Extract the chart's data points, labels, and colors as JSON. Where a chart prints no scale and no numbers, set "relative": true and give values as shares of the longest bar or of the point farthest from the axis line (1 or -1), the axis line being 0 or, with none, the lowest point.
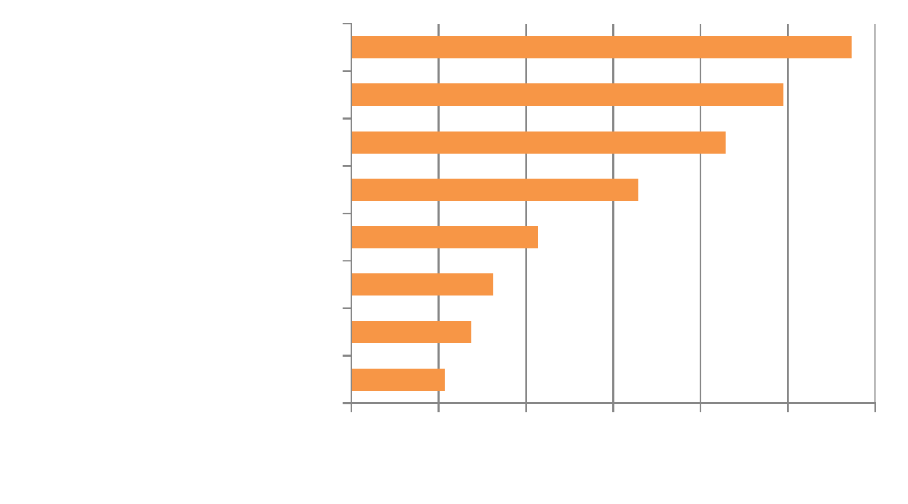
{
  "chart_data": {
    "type": "bar",
    "orientation": "horizontal",
    "relative": true,
    "categories": [
      null,
      null,
      null,
      null,
      null,
      null,
      null,
      null
    ],
    "values": [
      1,
      0.864,
      0.748,
      0.574,
      0.372,
      0.284,
      0.24,
      0.186
    ],
    "color": "#f79646",
    "grid": "x",
    "tick_labels": false
  }
}
